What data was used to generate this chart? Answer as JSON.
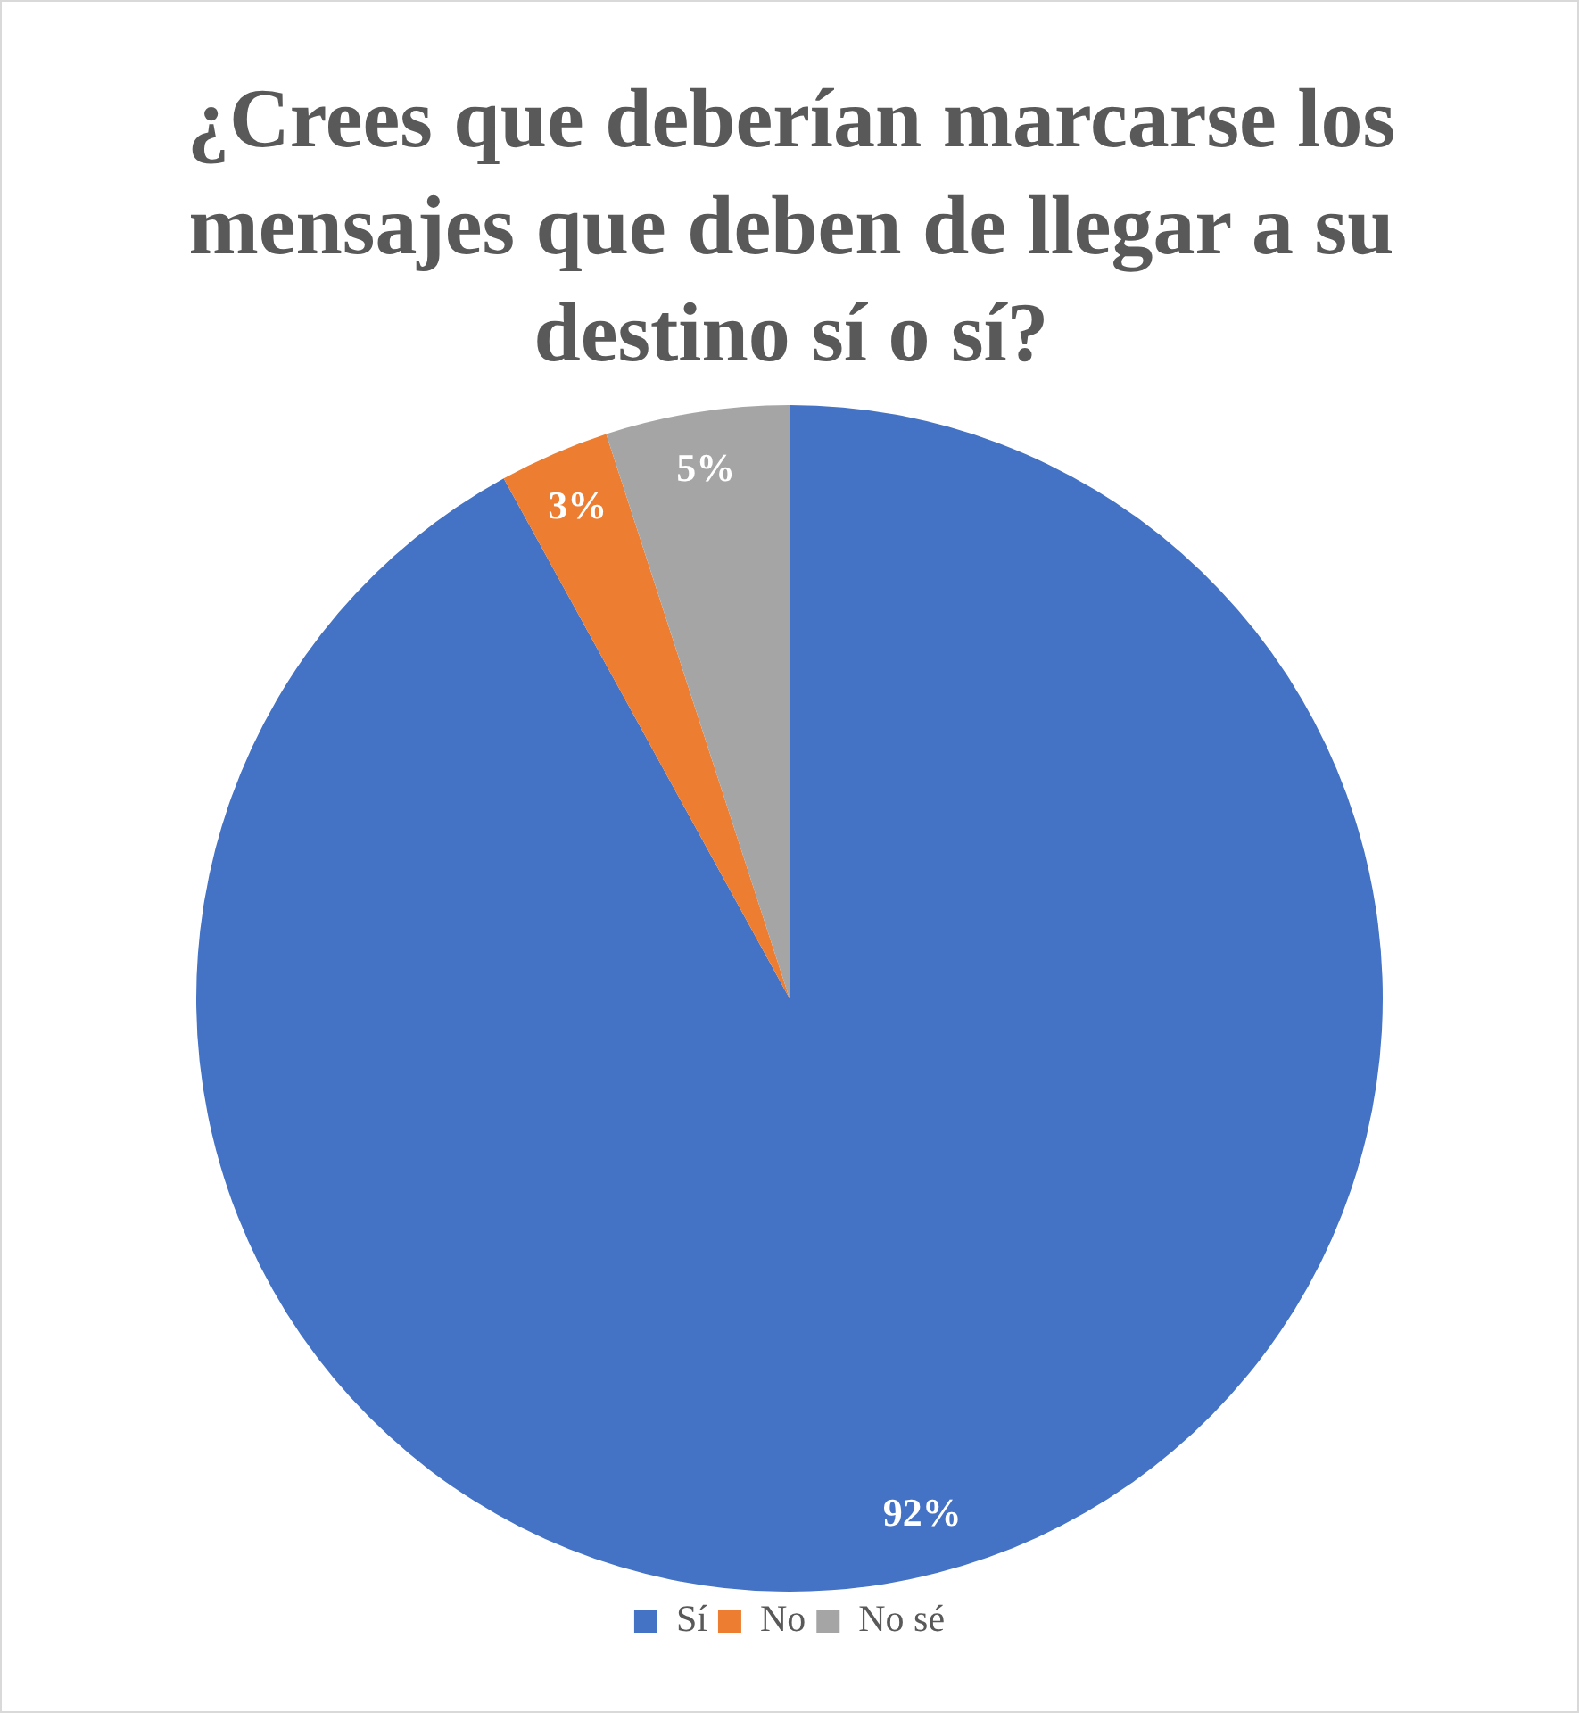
{
  "chart_data": {
    "type": "pie",
    "title": "¿Crees que deberían marcarse los mensajes que deben de llegar a su destino sí o sí?",
    "categories": [
      "Sí",
      "No",
      "No sé"
    ],
    "values": [
      92,
      3,
      5
    ],
    "colors": [
      "#4472c4",
      "#ed7d31",
      "#a5a5a5"
    ],
    "value_labels": [
      "92%",
      "3%",
      "5%"
    ],
    "legend": "bottom"
  }
}
